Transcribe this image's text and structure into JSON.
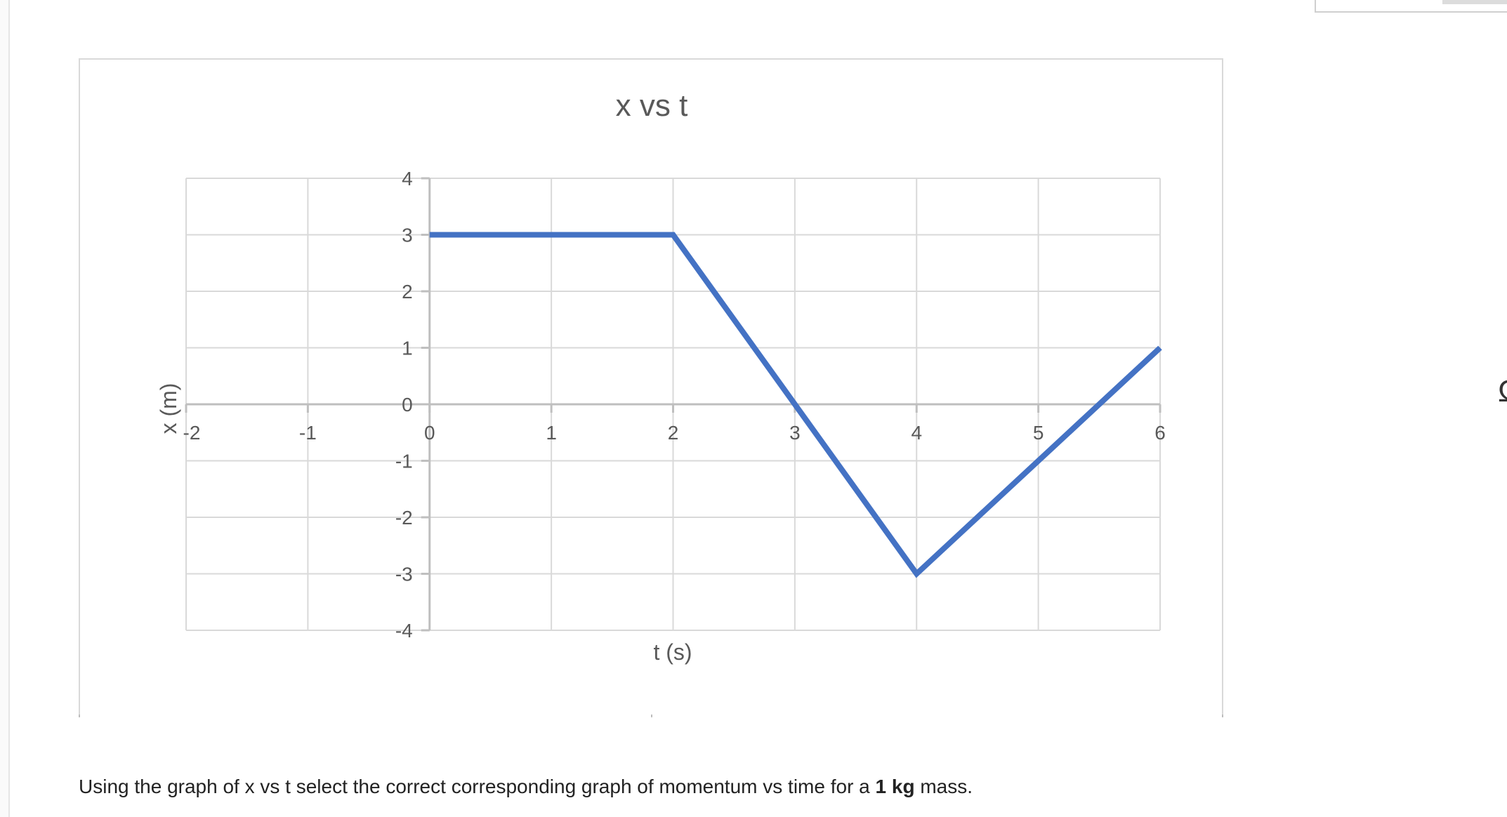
{
  "question": {
    "prefix": "Using the graph of x vs t select the correct corresponding graph of momentum vs time for a ",
    "bold": "1 kg",
    "suffix": " mass."
  },
  "edge_glyph": "Ω",
  "colors": {
    "series": "#4472c4",
    "grid": "#d9d9d9",
    "axis": "#bfbfbf",
    "text": "#595959"
  },
  "chart_data": {
    "type": "line",
    "title": "x vs t",
    "xlabel": "t (s)",
    "ylabel": "x (m)",
    "xlim": [
      -2,
      6
    ],
    "ylim": [
      -4,
      4
    ],
    "x_ticks": [
      "-2",
      "-1",
      "0",
      "1",
      "2",
      "3",
      "4",
      "5",
      "6"
    ],
    "y_ticks": [
      "4",
      "3",
      "2",
      "1",
      "0",
      "-1",
      "-2",
      "-3",
      "-4"
    ],
    "grid": true,
    "legend": "none",
    "series": [
      {
        "x": [
          0,
          2,
          4,
          6
        ],
        "y": [
          3,
          3,
          -3,
          1
        ]
      }
    ]
  }
}
